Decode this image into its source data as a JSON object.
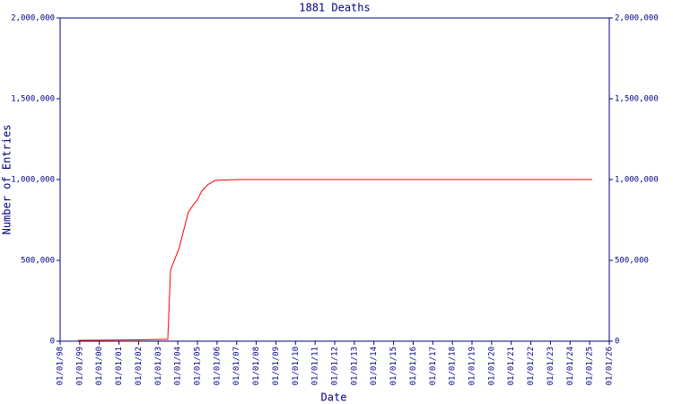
{
  "chart_data": {
    "type": "line",
    "title": "1881 Deaths",
    "x_label": "Date",
    "y_label": "Number of Entries",
    "x": [
      1998.91,
      2002.03,
      2003.49,
      2003.63,
      2003.76,
      2004.08,
      2004.31,
      2004.54,
      2004.77,
      2005.0,
      2005.23,
      2005.55,
      2005.91,
      2007.06,
      2025.13
    ],
    "series": [
      {
        "name": "1881 Deaths",
        "color": "#ff0000",
        "values": [
          5000,
          8000,
          12000,
          440000,
          480000,
          580000,
          690000,
          800000,
          840000,
          875000,
          930000,
          970000,
          995000,
          1000000,
          1000000
        ]
      }
    ],
    "xlim": [
      1998,
      2026
    ],
    "xticks": [
      {
        "value": 1998,
        "label": "01/01/98"
      },
      {
        "value": 1999,
        "label": "01/01/99"
      },
      {
        "value": 2000,
        "label": "01/01/00"
      },
      {
        "value": 2001,
        "label": "01/01/01"
      },
      {
        "value": 2002,
        "label": "01/01/02"
      },
      {
        "value": 2003,
        "label": "01/01/03"
      },
      {
        "value": 2004,
        "label": "01/01/04"
      },
      {
        "value": 2005,
        "label": "01/01/05"
      },
      {
        "value": 2006,
        "label": "01/01/06"
      },
      {
        "value": 2007,
        "label": "01/01/07"
      },
      {
        "value": 2008,
        "label": "01/01/08"
      },
      {
        "value": 2009,
        "label": "01/01/09"
      },
      {
        "value": 2010,
        "label": "01/01/10"
      },
      {
        "value": 2011,
        "label": "01/01/11"
      },
      {
        "value": 2012,
        "label": "01/01/12"
      },
      {
        "value": 2013,
        "label": "01/01/13"
      },
      {
        "value": 2014,
        "label": "01/01/14"
      },
      {
        "value": 2015,
        "label": "01/01/15"
      },
      {
        "value": 2016,
        "label": "01/01/16"
      },
      {
        "value": 2017,
        "label": "01/01/17"
      },
      {
        "value": 2018,
        "label": "01/01/18"
      },
      {
        "value": 2019,
        "label": "01/01/19"
      },
      {
        "value": 2020,
        "label": "01/01/20"
      },
      {
        "value": 2021,
        "label": "01/01/21"
      },
      {
        "value": 2022,
        "label": "01/01/22"
      },
      {
        "value": 2023,
        "label": "01/01/23"
      },
      {
        "value": 2024,
        "label": "01/01/24"
      },
      {
        "value": 2025,
        "label": "01/01/25"
      },
      {
        "value": 2026,
        "label": "01/01/26"
      }
    ],
    "ylim": [
      0,
      2000000
    ],
    "yticks": [
      0,
      {
        "value": 500000,
        "label": "500,000"
      },
      {
        "value": 1000000,
        "label": "1,000,000"
      },
      {
        "value": 1500000,
        "label": "1,500,000"
      },
      {
        "value": 2000000,
        "label": "2,000,000"
      }
    ],
    "y2lim": [
      0,
      2000000
    ],
    "y2ticks": [
      0,
      {
        "value": 500000,
        "label": "500,000"
      },
      {
        "value": 1000000,
        "label": "1,000,000"
      },
      {
        "value": 1500000,
        "label": "1,500,000"
      },
      {
        "value": 2000000,
        "label": "2,000,000"
      }
    ],
    "axis_color": "#000080",
    "grid": false
  }
}
